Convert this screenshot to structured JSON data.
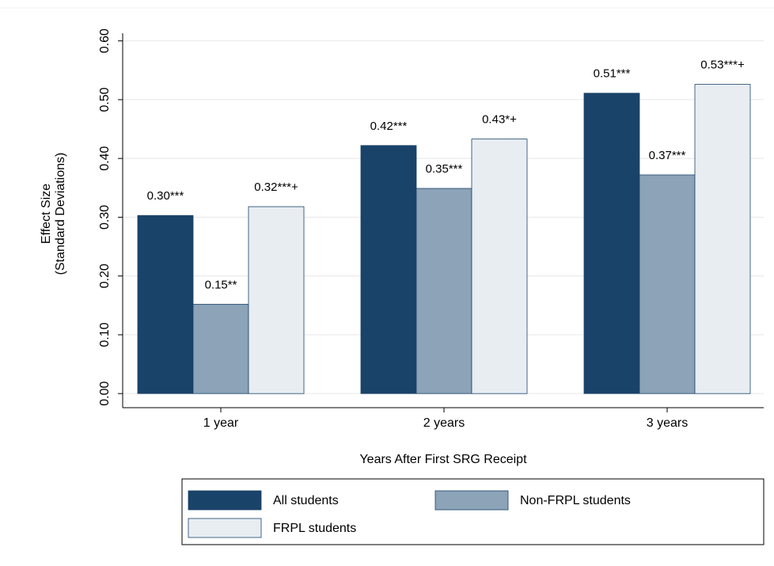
{
  "chart_data": {
    "type": "bar",
    "xlabel": "Years After First SRG Receipt",
    "ylabel": [
      "Effect Size",
      "(Standard Deviations)"
    ],
    "categories": [
      "1 year",
      "2 years",
      "3 years"
    ],
    "series": [
      {
        "name": "All students",
        "color": "#1a4369",
        "values": [
          0.303,
          0.422,
          0.511
        ],
        "value_labels": [
          "0.30***",
          "0.42***",
          "0.51***"
        ]
      },
      {
        "name": "Non-FRPL students",
        "color": "#8ca3b8",
        "values": [
          0.152,
          0.349,
          0.372
        ],
        "value_labels": [
          "0.15**",
          "0.35***",
          "0.37***"
        ]
      },
      {
        "name": "FRPL students",
        "color": "#e8edf2",
        "values": [
          0.318,
          0.433,
          0.526
        ],
        "value_labels": [
          "0.32***+",
          "0.43*+",
          "0.53***+"
        ]
      }
    ],
    "ylim": [
      -0.024,
      0.613
    ],
    "yticks": [
      {
        "value": 0,
        "label": "0.00"
      },
      {
        "value": 0.1,
        "label": "0.10"
      },
      {
        "value": 0.2,
        "label": "0.20"
      },
      {
        "value": 0.3,
        "label": "0.30"
      },
      {
        "value": 0.4,
        "label": "0.40"
      },
      {
        "value": 0.5,
        "label": "0.50"
      },
      {
        "value": 0.6,
        "label": "0.60"
      }
    ],
    "grid": true
  }
}
